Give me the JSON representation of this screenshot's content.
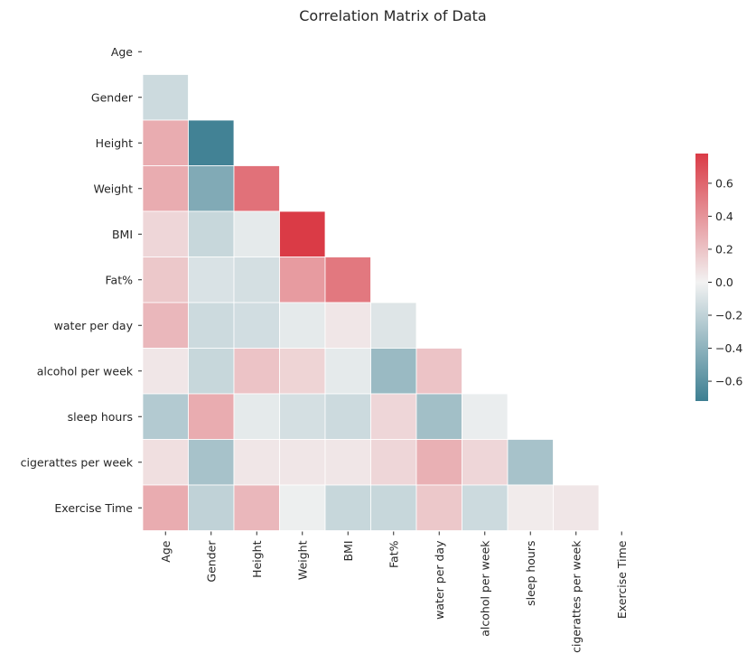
{
  "chart_data": {
    "type": "heatmap",
    "title": "Correlation Matrix of Data",
    "row_labels": [
      "Age ",
      "Gender ",
      "Height ",
      "Weight ",
      "BMI",
      "Fat%",
      "water per day",
      "alcohol per week",
      "sleep hours",
      "cigerattes per week",
      "Exercise Time"
    ],
    "col_labels": [
      "Age",
      "Gender",
      "Height",
      "Weight",
      "BMI",
      "Fat%",
      "water per day",
      "alcohol per week",
      "sleep hours",
      "cigerattes per week",
      "Exercise Time"
    ],
    "mask": "upper-triangle-including-diagonal",
    "values": [
      [],
      [
        -0.15
      ],
      [
        0.3,
        -0.7
      ],
      [
        0.3,
        -0.45,
        0.55
      ],
      [
        0.12,
        -0.17,
        -0.05,
        0.78
      ],
      [
        0.18,
        -0.1,
        -0.12,
        0.37,
        0.52
      ],
      [
        0.25,
        -0.15,
        -0.13,
        -0.05,
        0.05,
        -0.08
      ],
      [
        0.05,
        -0.17,
        0.2,
        0.13,
        -0.05,
        -0.35,
        0.2
      ],
      [
        -0.25,
        0.3,
        -0.05,
        -0.12,
        -0.15,
        0.12,
        -0.32,
        -0.03
      ],
      [
        0.08,
        -0.3,
        0.05,
        0.05,
        0.05,
        0.12,
        0.28,
        0.12,
        -0.3
      ],
      [
        0.3,
        -0.2,
        0.25,
        -0.02,
        -0.17,
        -0.17,
        0.18,
        -0.15,
        0.03,
        0.05
      ]
    ],
    "color_range": [
      -0.72,
      0.78
    ],
    "colorbar_ticks": [
      0.6,
      0.4,
      0.2,
      0.0,
      -0.2,
      -0.4,
      -0.6
    ],
    "colorbar_tick_labels": [
      "0.6",
      "0.4",
      "0.2",
      "0.0",
      "−0.2",
      "−0.4",
      "−0.6"
    ],
    "colormap": {
      "negative": "#3d7f92",
      "neutral": "#f2f2f2",
      "positive": "#da3b46"
    },
    "cell_edge_color": "#ffffff"
  }
}
